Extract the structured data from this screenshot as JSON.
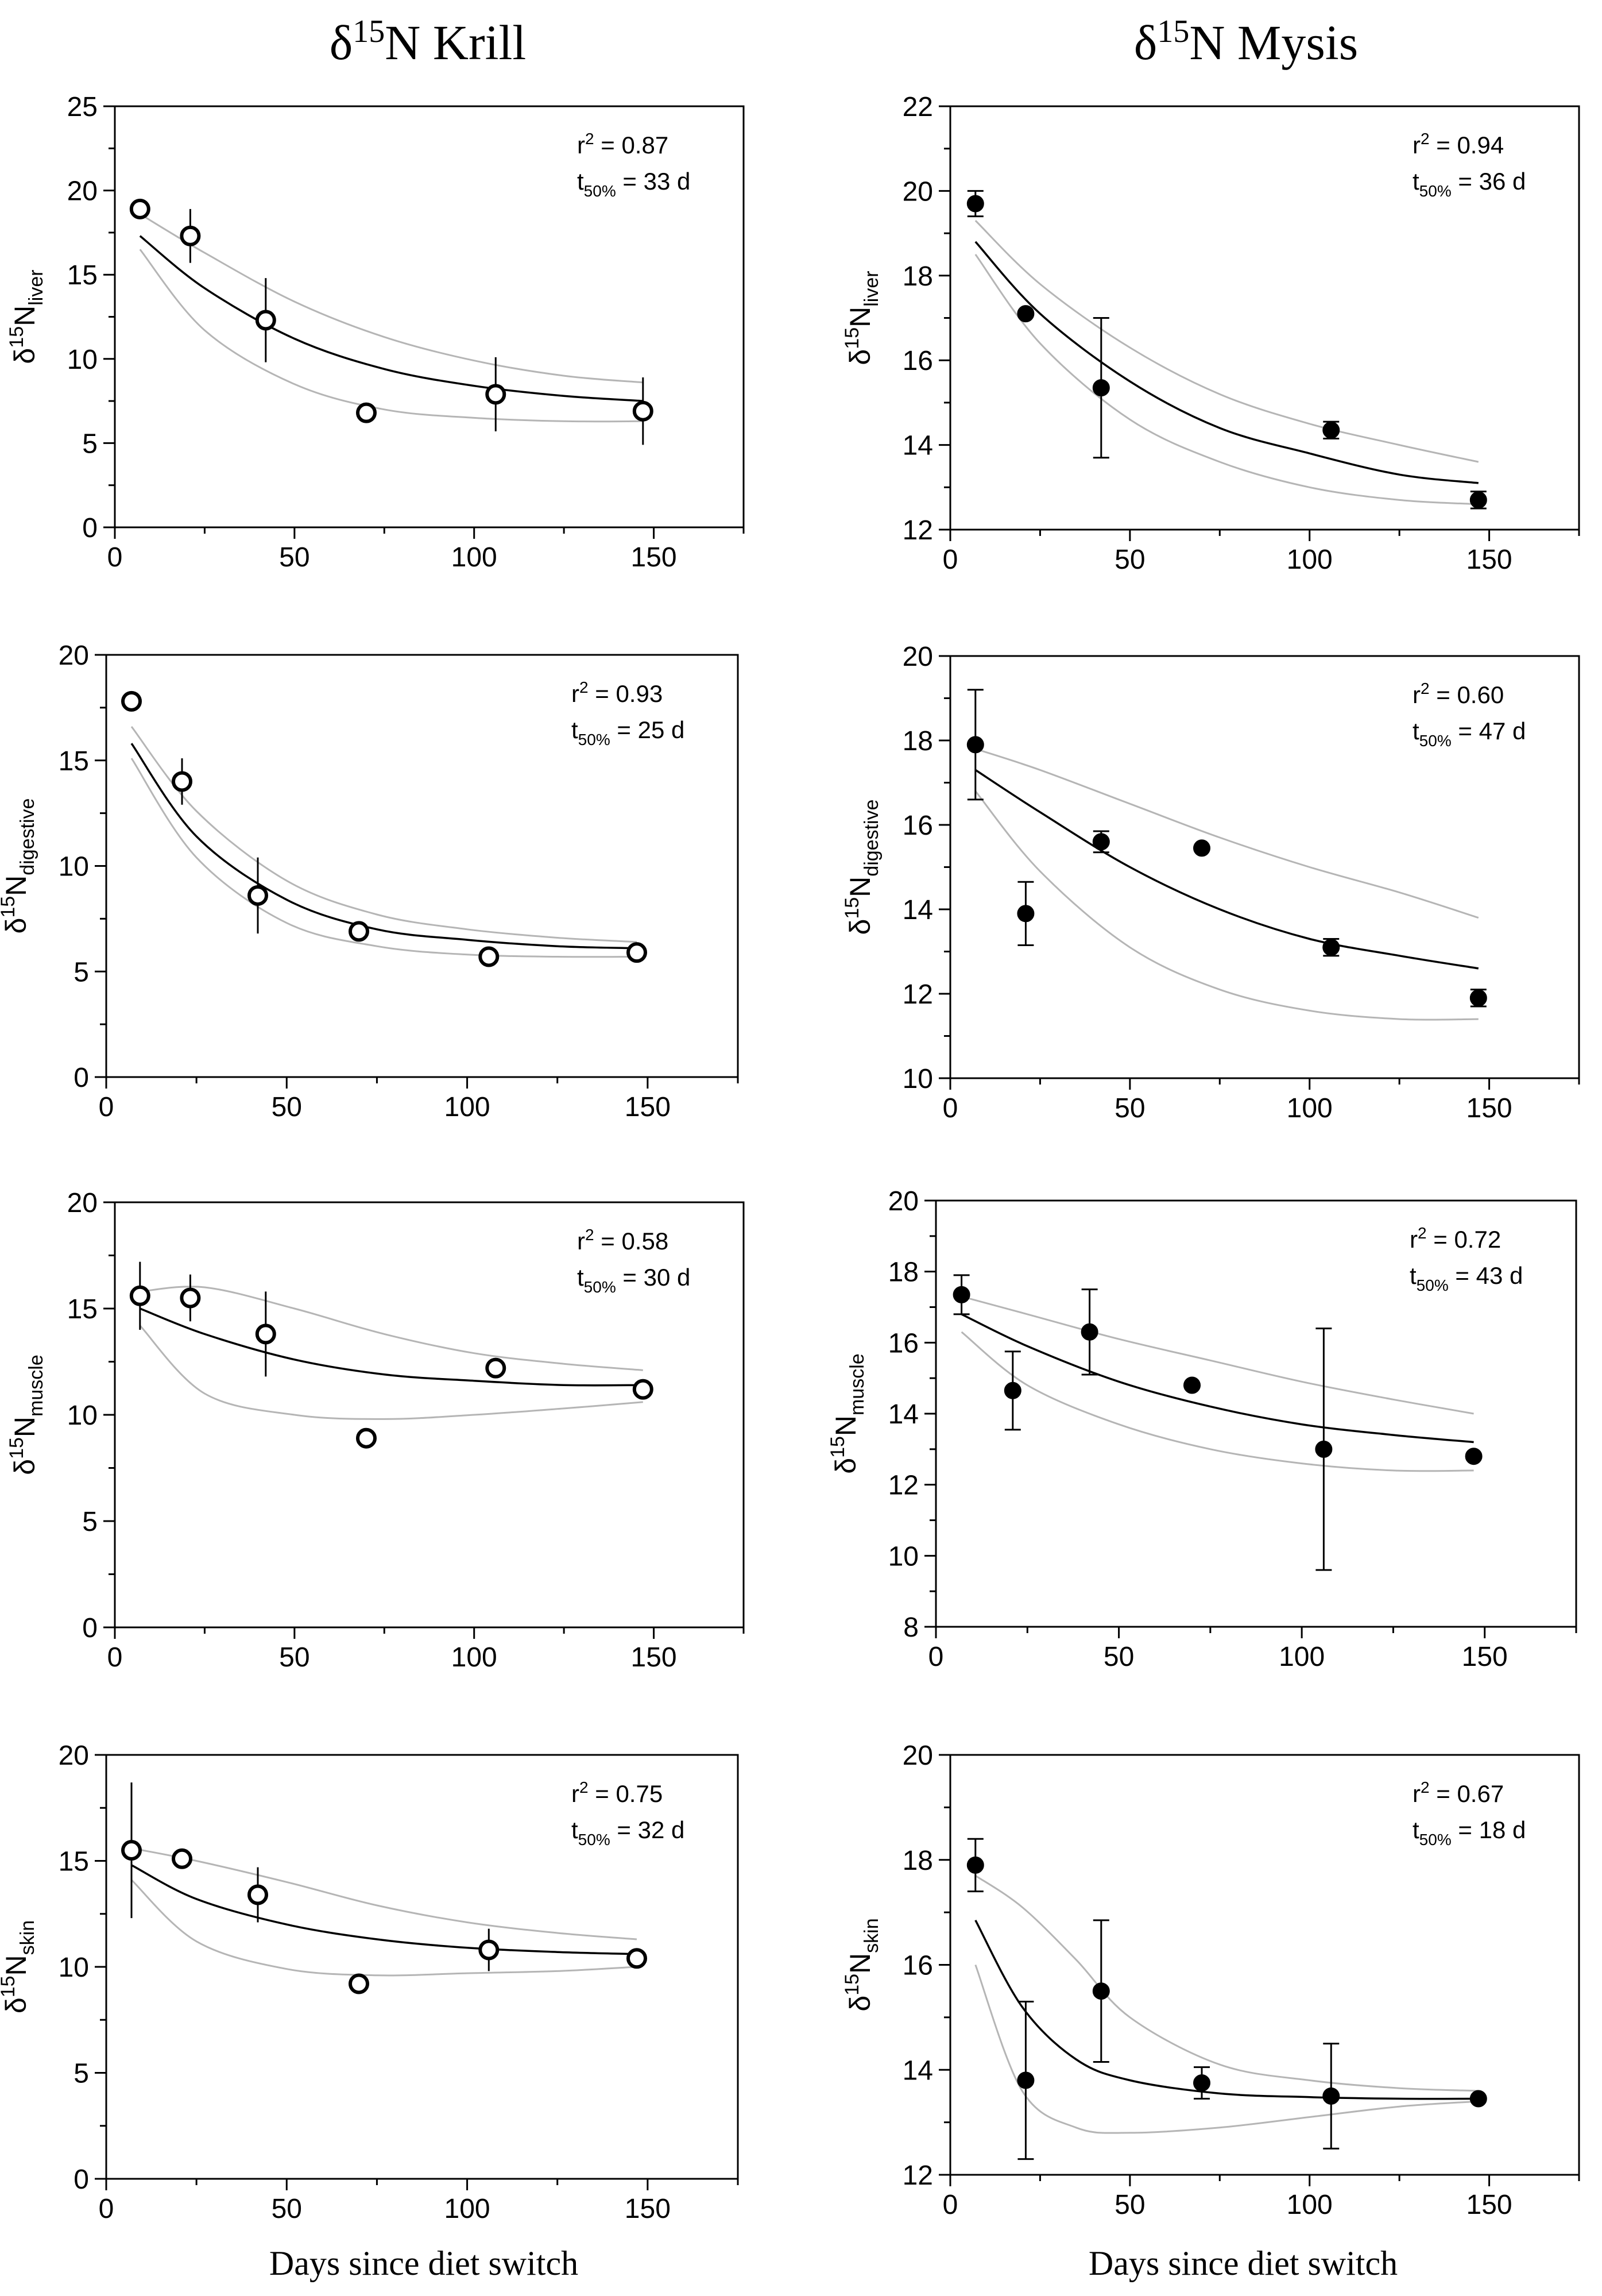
{
  "page": {
    "col_titles": [
      {
        "pre": "δ",
        "sup": "15",
        "post": "N Krill"
      },
      {
        "pre": "δ",
        "sup": "15",
        "post": "N Mysis"
      }
    ],
    "bottom_label": "Days since diet switch"
  },
  "chart_data": [
    {
      "type": "scatter",
      "diet": "Krill",
      "tissue": "liver",
      "marker": "open-circle",
      "ylabel": {
        "pre": "δ",
        "sup": "15",
        "main": "N",
        "sub": "liver"
      },
      "xlim": [
        0,
        175
      ],
      "ylim": [
        0,
        25
      ],
      "xticks": [
        0,
        50,
        100,
        150
      ],
      "yticks": [
        0,
        5,
        10,
        15,
        20,
        25
      ],
      "stats": {
        "r2_label": "r",
        "r2_sup": "2",
        "r2_text": " = 0.87",
        "t_label": "t",
        "t_sub": "50%",
        "t_text": " = 33 d"
      },
      "points": [
        {
          "x": 7,
          "y": 18.9,
          "err": 0
        },
        {
          "x": 21,
          "y": 17.3,
          "err": 1.6
        },
        {
          "x": 42,
          "y": 12.3,
          "err": 2.5
        },
        {
          "x": 70,
          "y": 6.8,
          "err": 0
        },
        {
          "x": 106,
          "y": 7.9,
          "err": 2.2
        },
        {
          "x": 147,
          "y": 6.9,
          "err": 2.0
        }
      ],
      "fit": {
        "x": [
          7,
          25,
          50,
          75,
          100,
          125,
          147
        ],
        "y": [
          17.3,
          14.2,
          11.2,
          9.4,
          8.4,
          7.8,
          7.5
        ]
      },
      "ci_upper": {
        "x": [
          7,
          25,
          50,
          75,
          100,
          125,
          147
        ],
        "y": [
          18.6,
          16.3,
          13.4,
          11.3,
          9.9,
          9.0,
          8.6
        ]
      },
      "ci_lower": {
        "x": [
          7,
          25,
          50,
          75,
          100,
          125,
          147
        ],
        "y": [
          16.5,
          11.7,
          8.5,
          7.0,
          6.5,
          6.3,
          6.3
        ]
      }
    },
    {
      "type": "scatter",
      "diet": "Mysis",
      "tissue": "liver",
      "marker": "filled-circle",
      "ylabel": {
        "pre": "δ",
        "sup": "15",
        "main": "N",
        "sub": "liver"
      },
      "xlim": [
        0,
        175
      ],
      "ylim": [
        12,
        22
      ],
      "xticks": [
        0,
        50,
        100,
        150
      ],
      "yticks": [
        12,
        14,
        16,
        18,
        20,
        22
      ],
      "stats": {
        "r2_label": "r",
        "r2_sup": "2",
        "r2_text": " = 0.94",
        "t_label": "t",
        "t_sub": "50%",
        "t_text": " = 36 d"
      },
      "points": [
        {
          "x": 7,
          "y": 19.7,
          "err": 0.3
        },
        {
          "x": 21,
          "y": 17.1,
          "err": 0
        },
        {
          "x": 42,
          "y": 15.35,
          "err": 1.65
        },
        {
          "x": 106,
          "y": 14.35,
          "err": 0.2
        },
        {
          "x": 147,
          "y": 12.7,
          "err": 0.2
        }
      ],
      "fit": {
        "x": [
          7,
          25,
          50,
          75,
          100,
          125,
          147
        ],
        "y": [
          18.8,
          17.1,
          15.5,
          14.4,
          13.8,
          13.3,
          13.1
        ]
      },
      "ci_upper": {
        "x": [
          7,
          25,
          50,
          75,
          100,
          125,
          147
        ],
        "y": [
          19.3,
          17.8,
          16.3,
          15.2,
          14.5,
          14.0,
          13.6
        ]
      },
      "ci_lower": {
        "x": [
          7,
          25,
          50,
          75,
          100,
          125,
          147
        ],
        "y": [
          18.5,
          16.4,
          14.6,
          13.6,
          13.0,
          12.7,
          12.6
        ]
      }
    },
    {
      "type": "scatter",
      "diet": "Krill",
      "tissue": "digestive",
      "marker": "open-circle",
      "ylabel": {
        "pre": "δ",
        "sup": "15",
        "main": "N",
        "sub": "digestive"
      },
      "xlim": [
        0,
        175
      ],
      "ylim": [
        0,
        20
      ],
      "xticks": [
        0,
        50,
        100,
        150
      ],
      "yticks": [
        0,
        5,
        10,
        15,
        20
      ],
      "stats": {
        "r2_label": "r",
        "r2_sup": "2",
        "r2_text": " = 0.93",
        "t_label": "t",
        "t_sub": "50%",
        "t_text": " = 25 d"
      },
      "points": [
        {
          "x": 7,
          "y": 17.8,
          "err": 0
        },
        {
          "x": 21,
          "y": 14.0,
          "err": 1.1
        },
        {
          "x": 42,
          "y": 8.6,
          "err": 1.8
        },
        {
          "x": 70,
          "y": 6.9,
          "err": 0
        },
        {
          "x": 106,
          "y": 5.7,
          "err": 0
        },
        {
          "x": 147,
          "y": 5.9,
          "err": 0
        }
      ],
      "fit": {
        "x": [
          7,
          25,
          50,
          75,
          100,
          125,
          147
        ],
        "y": [
          15.8,
          11.4,
          8.4,
          7.0,
          6.5,
          6.2,
          6.1
        ]
      },
      "ci_upper": {
        "x": [
          7,
          25,
          50,
          75,
          100,
          125,
          147
        ],
        "y": [
          16.6,
          12.6,
          9.3,
          7.7,
          7.0,
          6.6,
          6.4
        ]
      },
      "ci_lower": {
        "x": [
          7,
          25,
          50,
          75,
          100,
          125,
          147
        ],
        "y": [
          15.1,
          10.4,
          7.3,
          6.2,
          5.8,
          5.7,
          5.7
        ]
      }
    },
    {
      "type": "scatter",
      "diet": "Mysis",
      "tissue": "digestive",
      "marker": "filled-circle",
      "ylabel": {
        "pre": "δ",
        "sup": "15",
        "main": "N",
        "sub": "digestive"
      },
      "xlim": [
        0,
        175
      ],
      "ylim": [
        10,
        20
      ],
      "xticks": [
        0,
        50,
        100,
        150
      ],
      "yticks": [
        10,
        12,
        14,
        16,
        18,
        20
      ],
      "stats": {
        "r2_label": "r",
        "r2_sup": "2",
        "r2_text": " = 0.60",
        "t_label": "t",
        "t_sub": "50%",
        "t_text": " = 47 d"
      },
      "points": [
        {
          "x": 7,
          "y": 17.9,
          "err": 1.3
        },
        {
          "x": 21,
          "y": 13.9,
          "err": 0.75
        },
        {
          "x": 42,
          "y": 15.6,
          "err": 0.25
        },
        {
          "x": 70,
          "y": 15.45,
          "err": 0
        },
        {
          "x": 106,
          "y": 13.1,
          "err": 0.2
        },
        {
          "x": 147,
          "y": 11.9,
          "err": 0.2
        }
      ],
      "fit": {
        "x": [
          7,
          25,
          50,
          75,
          100,
          125,
          147
        ],
        "y": [
          17.3,
          16.3,
          15.0,
          14.0,
          13.3,
          12.9,
          12.6
        ]
      },
      "ci_upper": {
        "x": [
          7,
          25,
          50,
          75,
          100,
          125,
          147
        ],
        "y": [
          17.8,
          17.3,
          16.5,
          15.7,
          15.0,
          14.4,
          13.8
        ]
      },
      "ci_lower": {
        "x": [
          7,
          25,
          50,
          75,
          100,
          125,
          147
        ],
        "y": [
          16.8,
          14.9,
          13.1,
          12.1,
          11.6,
          11.4,
          11.4
        ]
      }
    },
    {
      "type": "scatter",
      "diet": "Krill",
      "tissue": "muscle",
      "marker": "open-circle",
      "ylabel": {
        "pre": "δ",
        "sup": "15",
        "main": "N",
        "sub": "muscle"
      },
      "xlim": [
        0,
        175
      ],
      "ylim": [
        0,
        20
      ],
      "xticks": [
        0,
        50,
        100,
        150
      ],
      "yticks": [
        0,
        5,
        10,
        15,
        20
      ],
      "stats": {
        "r2_label": "r",
        "r2_sup": "2",
        "r2_text": " = 0.58",
        "t_label": "t",
        "t_sub": "50%",
        "t_text": " = 30 d"
      },
      "points": [
        {
          "x": 7,
          "y": 15.6,
          "err": 1.6
        },
        {
          "x": 21,
          "y": 15.5,
          "err": 1.1
        },
        {
          "x": 42,
          "y": 13.8,
          "err": 2.0
        },
        {
          "x": 70,
          "y": 8.9,
          "err": 0
        },
        {
          "x": 106,
          "y": 12.2,
          "err": 0
        },
        {
          "x": 147,
          "y": 11.2,
          "err": 0
        }
      ],
      "fit": {
        "x": [
          7,
          25,
          50,
          75,
          100,
          125,
          147
        ],
        "y": [
          15.0,
          13.8,
          12.6,
          11.9,
          11.6,
          11.4,
          11.4
        ]
      },
      "ci_upper": {
        "x": [
          7,
          25,
          50,
          75,
          100,
          125,
          147
        ],
        "y": [
          15.8,
          16.0,
          15.0,
          13.8,
          12.9,
          12.4,
          12.1
        ]
      },
      "ci_lower": {
        "x": [
          7,
          25,
          50,
          75,
          100,
          125,
          147
        ],
        "y": [
          14.2,
          11.0,
          10.0,
          9.8,
          10.0,
          10.3,
          10.6
        ]
      }
    },
    {
      "type": "scatter",
      "diet": "Mysis",
      "tissue": "muscle",
      "marker": "filled-circle",
      "ylabel": {
        "pre": "δ",
        "sup": "15",
        "main": "N",
        "sub": "muscle"
      },
      "xlim": [
        0,
        175
      ],
      "ylim": [
        8,
        20
      ],
      "xticks": [
        0,
        50,
        100,
        150
      ],
      "yticks": [
        8,
        10,
        12,
        14,
        16,
        18,
        20
      ],
      "stats": {
        "r2_label": "r",
        "r2_sup": "2",
        "r2_text": " = 0.72",
        "t_label": "t",
        "t_sub": "50%",
        "t_text": " = 43 d"
      },
      "points": [
        {
          "x": 7,
          "y": 17.35,
          "err": 0.55
        },
        {
          "x": 21,
          "y": 14.65,
          "err": 1.1
        },
        {
          "x": 42,
          "y": 16.3,
          "err": 1.2
        },
        {
          "x": 70,
          "y": 14.8,
          "err": 0
        },
        {
          "x": 106,
          "y": 13.0,
          "err": 3.4
        },
        {
          "x": 147,
          "y": 12.8,
          "err": 0
        }
      ],
      "fit": {
        "x": [
          7,
          25,
          50,
          75,
          100,
          125,
          147
        ],
        "y": [
          16.8,
          15.9,
          14.9,
          14.2,
          13.7,
          13.4,
          13.2
        ]
      },
      "ci_upper": {
        "x": [
          7,
          25,
          50,
          75,
          100,
          125,
          147
        ],
        "y": [
          17.3,
          16.8,
          16.1,
          15.5,
          14.9,
          14.4,
          14.0
        ]
      },
      "ci_lower": {
        "x": [
          7,
          25,
          50,
          75,
          100,
          125,
          147
        ],
        "y": [
          16.3,
          14.8,
          13.7,
          13.0,
          12.6,
          12.4,
          12.4
        ]
      }
    },
    {
      "type": "scatter",
      "diet": "Krill",
      "tissue": "skin",
      "marker": "open-circle",
      "ylabel": {
        "pre": "δ",
        "sup": "15",
        "main": "N",
        "sub": "skin"
      },
      "xlim": [
        0,
        175
      ],
      "ylim": [
        0,
        20
      ],
      "xticks": [
        0,
        50,
        100,
        150
      ],
      "yticks": [
        0,
        5,
        10,
        15,
        20
      ],
      "stats": {
        "r2_label": "r",
        "r2_sup": "2",
        "r2_text": " = 0.75",
        "t_label": "t",
        "t_sub": "50%",
        "t_text": " = 32 d"
      },
      "points": [
        {
          "x": 7,
          "y": 15.5,
          "err": 3.2
        },
        {
          "x": 21,
          "y": 15.1,
          "err": 0
        },
        {
          "x": 42,
          "y": 13.4,
          "err": 1.3
        },
        {
          "x": 70,
          "y": 9.2,
          "err": 0
        },
        {
          "x": 106,
          "y": 10.8,
          "err": 1.0
        },
        {
          "x": 147,
          "y": 10.4,
          "err": 0
        }
      ],
      "fit": {
        "x": [
          7,
          25,
          50,
          75,
          100,
          125,
          147
        ],
        "y": [
          14.8,
          13.2,
          12.0,
          11.3,
          10.9,
          10.7,
          10.6
        ]
      },
      "ci_upper": {
        "x": [
          7,
          25,
          50,
          75,
          100,
          125,
          147
        ],
        "y": [
          15.6,
          15.0,
          14.0,
          12.9,
          12.1,
          11.6,
          11.3
        ]
      },
      "ci_lower": {
        "x": [
          7,
          25,
          50,
          75,
          100,
          125,
          147
        ],
        "y": [
          14.1,
          11.2,
          9.9,
          9.6,
          9.7,
          9.8,
          10.0
        ]
      }
    },
    {
      "type": "scatter",
      "diet": "Mysis",
      "tissue": "skin",
      "marker": "filled-circle",
      "ylabel": {
        "pre": "δ",
        "sup": "15",
        "main": "N",
        "sub": "skin"
      },
      "xlim": [
        0,
        175
      ],
      "ylim": [
        12,
        20
      ],
      "xticks": [
        0,
        50,
        100,
        150
      ],
      "yticks": [
        12,
        14,
        16,
        18,
        20
      ],
      "stats": {
        "r2_label": "r",
        "r2_sup": "2",
        "r2_text": " = 0.67",
        "t_label": "t",
        "t_sub": "50%",
        "t_text": " = 18 d"
      },
      "points": [
        {
          "x": 7,
          "y": 17.9,
          "err": 0.5
        },
        {
          "x": 21,
          "y": 13.8,
          "err": 1.5
        },
        {
          "x": 42,
          "y": 15.5,
          "err": 1.35
        },
        {
          "x": 70,
          "y": 13.75,
          "err": 0.3
        },
        {
          "x": 106,
          "y": 13.5,
          "err": 1.0
        },
        {
          "x": 147,
          "y": 13.45,
          "err": 0
        }
      ],
      "fit": {
        "x": [
          7,
          20,
          35,
          50,
          75,
          100,
          125,
          147
        ],
        "y": [
          16.85,
          15.2,
          14.2,
          13.8,
          13.55,
          13.48,
          13.45,
          13.45
        ]
      },
      "ci_upper": {
        "x": [
          7,
          20,
          35,
          50,
          75,
          100,
          125,
          147
        ],
        "y": [
          17.7,
          17.1,
          16.1,
          15.0,
          14.1,
          13.8,
          13.65,
          13.6
        ]
      },
      "ci_lower": {
        "x": [
          7,
          20,
          35,
          50,
          75,
          100,
          125,
          147
        ],
        "y": [
          16.0,
          13.6,
          12.9,
          12.8,
          12.9,
          13.1,
          13.3,
          13.4
        ]
      }
    }
  ]
}
